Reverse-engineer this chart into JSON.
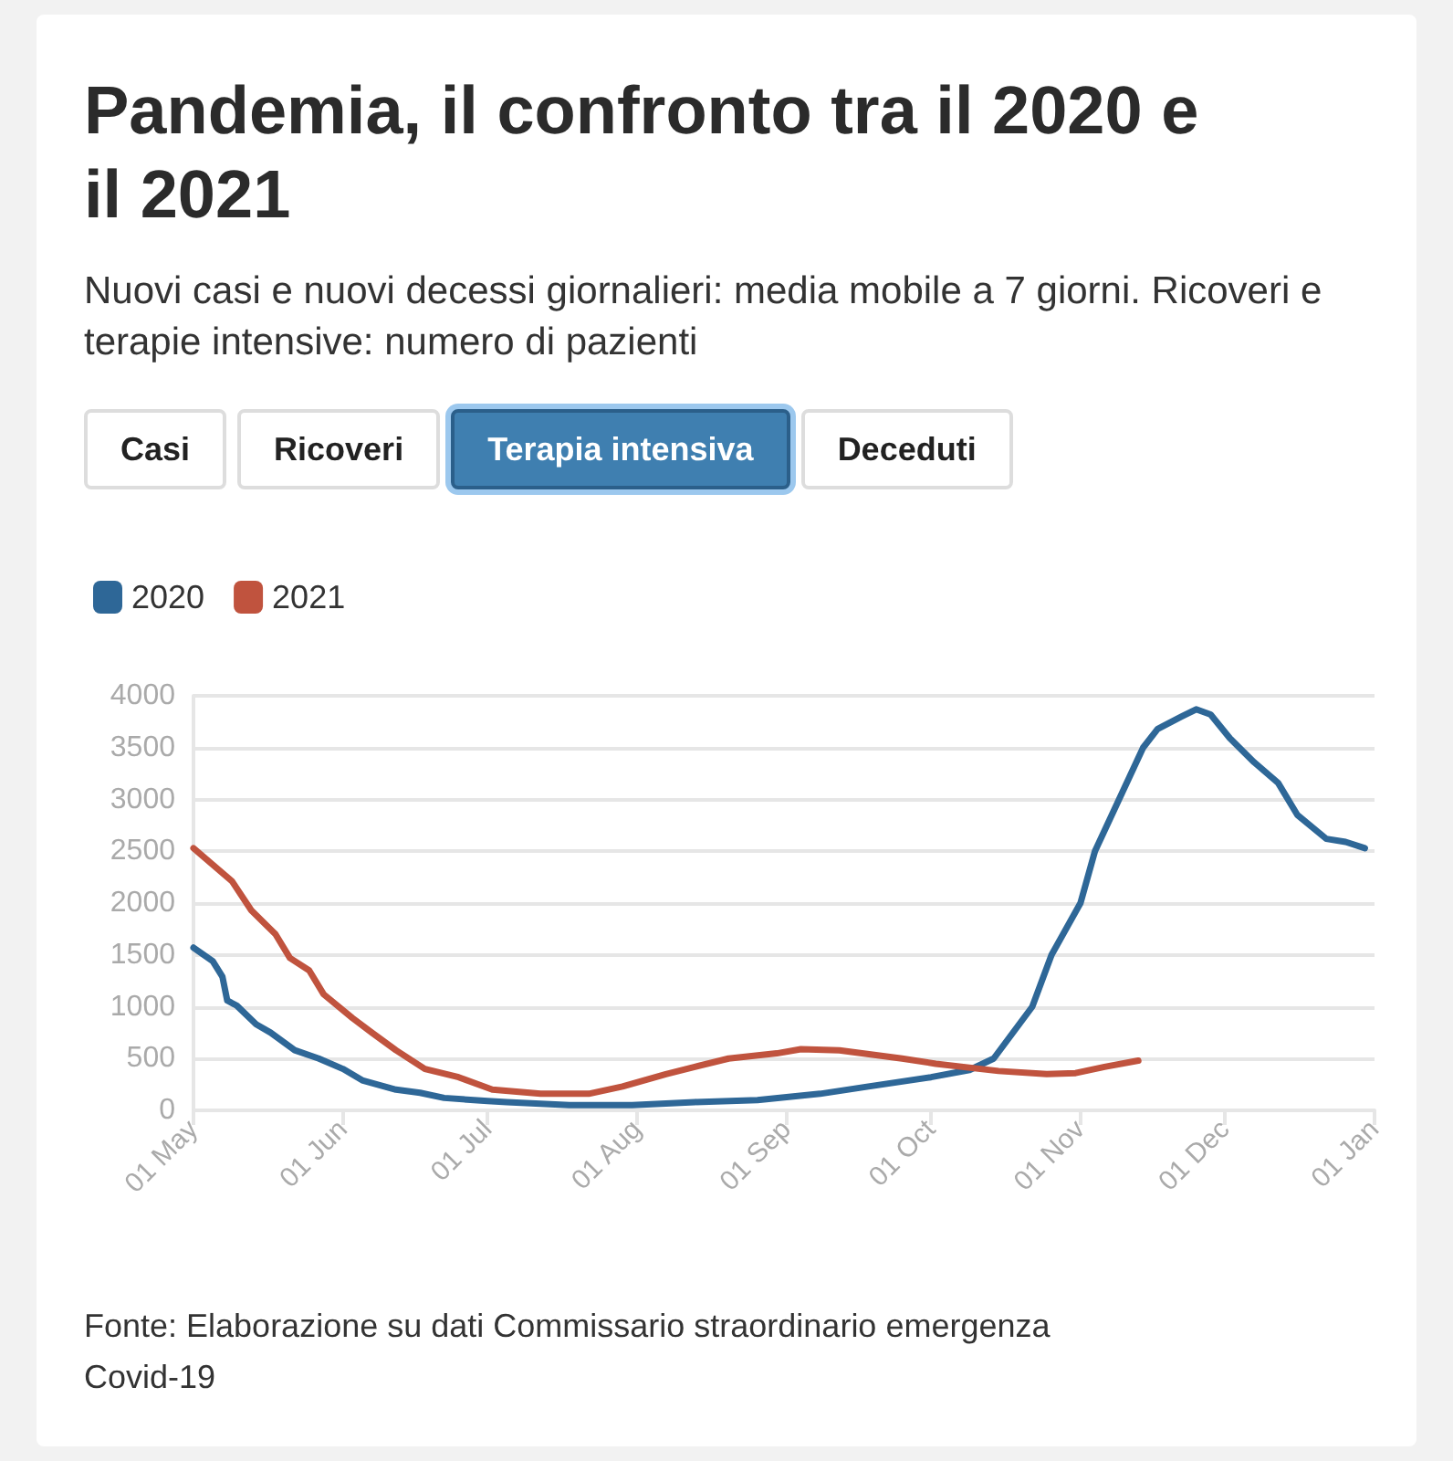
{
  "chart_data": {
    "type": "line",
    "title": "Pandemia, il confronto tra il 2020 e il 2021",
    "subtitle": "Nuovi casi e nuovi decessi giornalieri: media mobile a 7 giorni. Ricoveri e terapie intensive: numero di pazienti",
    "annotations": [
      "Casi",
      "Ricoveri",
      "Terapia intensiva",
      "Deceduti",
      "Fonte: Elaborazione su dati Commissario straordinario emergenza Covid-19"
    ],
    "series": [
      {
        "name": "2020",
        "color": "#2e6797",
        "x": [
          "2020-05-01",
          "2020-05-05",
          "2020-05-07",
          "2020-05-08",
          "2020-05-10",
          "2020-05-14",
          "2020-05-17",
          "2020-05-22",
          "2020-05-27",
          "2020-06-01",
          "2020-06-05",
          "2020-06-12",
          "2020-06-17",
          "2020-06-22",
          "2020-07-01",
          "2020-07-05",
          "2020-07-18",
          "2020-07-31",
          "2020-08-13",
          "2020-08-26",
          "2020-09-08",
          "2020-09-18",
          "2020-10-01",
          "2020-10-09",
          "2020-10-14",
          "2020-10-22",
          "2020-10-26",
          "2020-11-01",
          "2020-11-04",
          "2020-11-09",
          "2020-11-14",
          "2020-11-17",
          "2020-11-22",
          "2020-11-25",
          "2020-11-28",
          "2020-12-02",
          "2020-12-07",
          "2020-12-12",
          "2020-12-16",
          "2020-12-22",
          "2020-12-26",
          "2020-12-30"
        ],
        "values": [
          1570,
          1440,
          1290,
          1060,
          1010,
          830,
          750,
          580,
          500,
          400,
          290,
          200,
          170,
          120,
          90,
          80,
          50,
          50,
          80,
          100,
          160,
          230,
          320,
          390,
          500,
          1000,
          1500,
          2000,
          2500,
          3000,
          3500,
          3680,
          3800,
          3870,
          3820,
          3590,
          3360,
          3160,
          2850,
          2620,
          2590,
          2530
        ]
      },
      {
        "name": "2021",
        "color": "#c0533e",
        "x": [
          "2020-05-01",
          "2020-05-09",
          "2020-05-13",
          "2020-05-18",
          "2020-05-21",
          "2020-05-25",
          "2020-05-28",
          "2020-06-03",
          "2020-06-07",
          "2020-06-12",
          "2020-06-18",
          "2020-06-25",
          "2020-07-02",
          "2020-07-12",
          "2020-07-22",
          "2020-07-29",
          "2020-08-07",
          "2020-08-13",
          "2020-08-20",
          "2020-08-30",
          "2020-09-04",
          "2020-09-12",
          "2020-09-25",
          "2020-10-02",
          "2020-10-15",
          "2020-10-25",
          "2020-10-31",
          "2020-11-06",
          "2020-11-13"
        ],
        "values": [
          2530,
          2210,
          1930,
          1700,
          1470,
          1350,
          1120,
          890,
          750,
          580,
          400,
          320,
          200,
          160,
          160,
          230,
          350,
          420,
          500,
          550,
          590,
          580,
          500,
          450,
          380,
          350,
          360,
          420,
          480
        ]
      }
    ],
    "xlim": [
      "2020-05-01",
      "2021-01-01"
    ],
    "xticks": [
      {
        "value": "2020-05-01",
        "label": "01 May"
      },
      {
        "value": "2020-06-01",
        "label": "01 Jun"
      },
      {
        "value": "2020-07-01",
        "label": "01 Jul"
      },
      {
        "value": "2020-08-01",
        "label": "01 Aug"
      },
      {
        "value": "2020-09-01",
        "label": "01 Sep"
      },
      {
        "value": "2020-10-01",
        "label": "01 Oct"
      },
      {
        "value": "2020-11-01",
        "label": "01 Nov"
      },
      {
        "value": "2020-12-01",
        "label": "01 Dec"
      },
      {
        "value": "2021-01-01",
        "label": "01 Jan"
      }
    ],
    "ylim": [
      0,
      4000
    ],
    "yticks": [
      0,
      500,
      1000,
      1500,
      2000,
      2500,
      3000,
      3500,
      4000
    ],
    "grid": "y",
    "legend": "top left",
    "marker": "none",
    "line_style": "solid"
  }
}
